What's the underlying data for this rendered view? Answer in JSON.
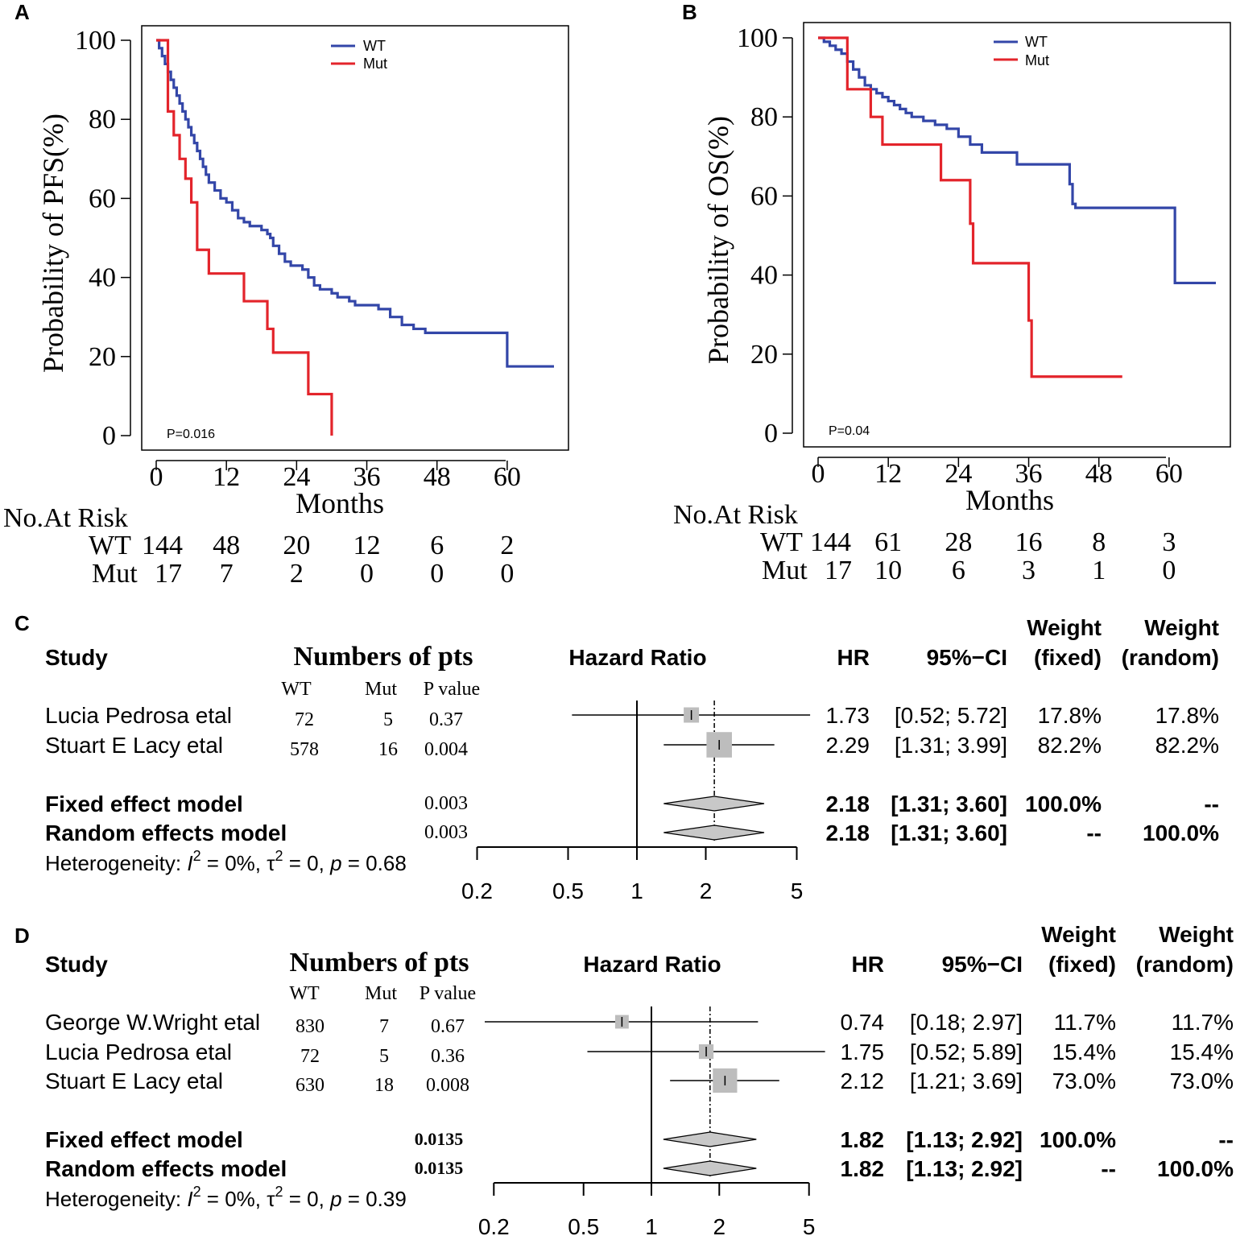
{
  "chart_data": [
    {
      "panel": "A",
      "type": "line",
      "subtype": "kaplan-meier",
      "title": "",
      "xlabel": "Months",
      "ylabel": "Probability of PFS(%)",
      "xlim": [
        0,
        68
      ],
      "ylim": [
        0,
        100
      ],
      "xticks": [
        0,
        12,
        24,
        36,
        48,
        60
      ],
      "yticks": [
        0,
        20,
        40,
        60,
        80,
        100
      ],
      "pvalue": "P=0.016",
      "legend": [
        "WT",
        "Mut"
      ],
      "colors": {
        "WT": "#3346a8",
        "Mut": "#e3242b"
      },
      "series": [
        {
          "name": "WT",
          "x": [
            0,
            0.5,
            1,
            1.5,
            2,
            2.5,
            3,
            3.5,
            4,
            4.5,
            5,
            5.5,
            6,
            6.5,
            7,
            7.5,
            8,
            8.5,
            9,
            10,
            11,
            12,
            13,
            14,
            15,
            16,
            17,
            18,
            19,
            19.5,
            20,
            21,
            22,
            23,
            24,
            25,
            26,
            27,
            28,
            30,
            31,
            32,
            33,
            34,
            35,
            36,
            38,
            40,
            42,
            44,
            46,
            48,
            50,
            52,
            54,
            56,
            58,
            60,
            60,
            61,
            62,
            63,
            64,
            65,
            66,
            67,
            68
          ],
          "y": [
            100,
            98,
            96,
            94,
            92,
            90,
            88,
            86,
            84,
            82,
            80,
            78,
            76,
            74,
            72,
            70,
            68,
            66,
            64,
            62,
            60,
            59,
            57,
            55,
            54,
            53,
            53,
            52,
            51,
            50,
            48,
            46,
            44,
            43,
            43,
            42,
            40,
            38,
            37,
            36,
            35,
            35,
            34,
            33,
            33,
            33,
            32,
            30,
            28,
            27,
            26,
            26,
            26,
            26,
            26,
            26,
            26,
            26,
            17.5,
            17.5,
            17.5,
            17.5,
            17.5,
            17.5,
            17.5,
            17.5,
            17.5
          ]
        },
        {
          "name": "Mut",
          "x": [
            0,
            2,
            2,
            3,
            3,
            4,
            4,
            5,
            5,
            6,
            6,
            7,
            7,
            9,
            9,
            15,
            15,
            19,
            19,
            20,
            20,
            26,
            26,
            30,
            30
          ],
          "y": [
            100,
            100,
            82,
            82,
            76,
            76,
            70,
            70,
            65,
            65,
            59,
            59,
            47,
            47,
            41,
            41,
            34,
            34,
            27,
            27,
            21,
            21,
            10.5,
            10.5,
            0
          ]
        }
      ]
    },
    {
      "panel": "B",
      "type": "line",
      "subtype": "kaplan-meier",
      "title": "",
      "xlabel": "Months",
      "ylabel": "Probability of OS(%)",
      "xlim": [
        0,
        68
      ],
      "ylim": [
        0,
        100
      ],
      "xticks": [
        0,
        12,
        24,
        36,
        48,
        60
      ],
      "yticks": [
        0,
        20,
        40,
        60,
        80,
        100
      ],
      "pvalue": "P=0.04",
      "legend": [
        "WT",
        "Mut"
      ],
      "colors": {
        "WT": "#3346a8",
        "Mut": "#e3242b"
      },
      "series": [
        {
          "name": "WT",
          "x": [
            0,
            1,
            2,
            3,
            4,
            5,
            6,
            7,
            8,
            9,
            10,
            11,
            12,
            13,
            14,
            15,
            16,
            18,
            20,
            22,
            24,
            26,
            28,
            30,
            34,
            36,
            40,
            42,
            43,
            43.5,
            44,
            50,
            55,
            60,
            61,
            61,
            64,
            68
          ],
          "y": [
            100,
            99,
            98,
            97,
            96,
            94,
            92,
            90,
            88,
            87,
            86,
            85,
            84,
            83,
            82,
            81,
            80,
            79,
            78,
            77,
            75,
            73,
            71,
            71,
            68,
            68,
            68,
            68,
            63,
            58,
            57,
            57,
            57,
            57,
            57,
            38,
            38,
            38
          ]
        },
        {
          "name": "Mut",
          "x": [
            0,
            5,
            5,
            9,
            9,
            11,
            11,
            21,
            21,
            26,
            26,
            26.5,
            26.5,
            36,
            36,
            36.5,
            36.5,
            52
          ],
          "y": [
            100,
            100,
            87,
            87,
            80,
            80,
            73,
            73,
            64,
            64,
            53,
            53,
            43,
            43,
            28.5,
            28.5,
            14.3,
            14.3
          ]
        }
      ]
    },
    {
      "panel": "C",
      "type": "table",
      "subtype": "forest-plot",
      "xlabel": "Hazard Ratio",
      "xscale": "log",
      "xticks": [
        0.2,
        0.5,
        1,
        2,
        5
      ],
      "pooled_hr": 2.18,
      "studies": [
        {
          "study": "Lucia Pedrosa etal",
          "wt": "72",
          "mut": "5",
          "p": "0.37",
          "hr": 1.73,
          "lo": 0.52,
          "hi": 5.72,
          "w_fixed": 17.8
        },
        {
          "study": "Stuart E Lacy etal",
          "wt": "578",
          "mut": "16",
          "p": "0.004",
          "hr": 2.29,
          "lo": 1.31,
          "hi": 3.99,
          "w_fixed": 82.2
        }
      ],
      "models": [
        {
          "name": "Fixed effect model",
          "p": "0.003",
          "hr": 2.18,
          "lo": 1.31,
          "hi": 3.6
        },
        {
          "name": "Random effects model",
          "p": "0.003",
          "hr": 2.18,
          "lo": 1.31,
          "hi": 3.6
        }
      ]
    },
    {
      "panel": "D",
      "type": "table",
      "subtype": "forest-plot",
      "xlabel": "Hazard Ratio",
      "xscale": "log",
      "xticks": [
        0.2,
        0.5,
        1,
        2,
        5
      ],
      "pooled_hr": 1.82,
      "studies": [
        {
          "study": "George W.Wright etal",
          "wt": "830",
          "mut": "7",
          "p": "0.67",
          "hr": 0.74,
          "lo": 0.18,
          "hi": 2.97,
          "w_fixed": 11.7
        },
        {
          "study": "Lucia Pedrosa etal",
          "wt": "72",
          "mut": "5",
          "p": "0.36",
          "hr": 1.75,
          "lo": 0.52,
          "hi": 5.89,
          "w_fixed": 15.4
        },
        {
          "study": "Stuart E Lacy etal",
          "wt": "630",
          "mut": "18",
          "p": "0.008",
          "hr": 2.12,
          "lo": 1.21,
          "hi": 3.69,
          "w_fixed": 73.0
        }
      ],
      "models": [
        {
          "name": "Fixed effect model",
          "p": "0.0135",
          "hr": 1.82,
          "lo": 1.13,
          "hi": 2.92
        },
        {
          "name": "Random effects model",
          "p": "0.0135",
          "hr": 1.82,
          "lo": 1.13,
          "hi": 2.92
        }
      ]
    }
  ],
  "panelA": {
    "label": "A",
    "yticks": [
      "0",
      "20",
      "40",
      "60",
      "80",
      "100"
    ],
    "xticks": [
      "0",
      "12",
      "24",
      "36",
      "48",
      "60"
    ],
    "ylabel": "Probability of PFS(%)",
    "xlabel": "Months",
    "legend_wt": "WT",
    "legend_mut": "Mut",
    "pvalue": "P=0.016",
    "risk_title": "No.At Risk",
    "risk_wt_label": "WT",
    "risk_mut_label": "Mut",
    "risk_wt": [
      "144",
      "48",
      "20",
      "12",
      "6",
      "2"
    ],
    "risk_mut": [
      "17",
      "7",
      "2",
      "0",
      "0",
      "0"
    ]
  },
  "panelB": {
    "label": "B",
    "yticks": [
      "0",
      "20",
      "40",
      "60",
      "80",
      "100"
    ],
    "xticks": [
      "0",
      "12",
      "24",
      "36",
      "48",
      "60"
    ],
    "ylabel": "Probability of OS(%)",
    "xlabel": "Months",
    "legend_wt": "WT",
    "legend_mut": "Mut",
    "pvalue": "P=0.04",
    "risk_title": "No.At Risk",
    "risk_wt_label": "WT",
    "risk_mut_label": "Mut",
    "risk_wt": [
      "144",
      "61",
      "28",
      "16",
      "8",
      "3"
    ],
    "risk_mut": [
      "17",
      "10",
      "6",
      "3",
      "1",
      "0"
    ]
  },
  "panelC": {
    "label": "C",
    "h_study": "Study",
    "h_pts": "Numbers of pts",
    "h_hr_axis": "Hazard Ratio",
    "h_hr": "HR",
    "h_ci": "95%−CI",
    "h_weight1": "Weight",
    "h_fixed": "(fixed)",
    "h_weight2": "Weight",
    "h_random": "(random)",
    "sub_wt": "WT",
    "sub_mut": "Mut",
    "sub_p": "P value",
    "rows": [
      {
        "study": "Lucia Pedrosa etal",
        "wt": "72",
        "mut": "5",
        "p": "0.37",
        "hr": "1.73",
        "ci": "[0.52; 5.72]",
        "wf": "17.8%",
        "wr": "17.8%"
      },
      {
        "study": "Stuart E Lacy etal",
        "wt": "578",
        "mut": "16",
        "p": "0.004",
        "hr": "2.29",
        "ci": "[1.31; 3.99]",
        "wf": "82.2%",
        "wr": "82.2%"
      }
    ],
    "models": [
      {
        "name": "Fixed effect model",
        "p": "0.003",
        "hr": "2.18",
        "ci": "[1.31; 3.60]",
        "wf": "100.0%",
        "wr": "--"
      },
      {
        "name": "Random effects model",
        "p": "0.003",
        "hr": "2.18",
        "ci": "[1.31; 3.60]",
        "wf": "--",
        "wr": "100.0%"
      }
    ],
    "het_prefix": "Heterogeneity: ",
    "het_i": "I",
    "het_sup": "2",
    "het_mid": " = 0%, ",
    "het_tau": "τ",
    "het_mid2": " = 0, ",
    "het_p": "p",
    "het_end": " = 0.68",
    "axis_ticks": [
      "0.2",
      "0.5",
      "1",
      "2",
      "5"
    ]
  },
  "panelD": {
    "label": "D",
    "h_study": "Study",
    "h_pts": "Numbers of pts",
    "h_hr_axis": "Hazard Ratio",
    "h_hr": "HR",
    "h_ci": "95%−CI",
    "h_weight1": "Weight",
    "h_fixed": "(fixed)",
    "h_weight2": "Weight",
    "h_random": "(random)",
    "sub_wt": "WT",
    "sub_mut": "Mut",
    "sub_p": "P value",
    "rows": [
      {
        "study": "George W.Wright etal",
        "wt": "830",
        "mut": "7",
        "p": "0.67",
        "hr": "0.74",
        "ci": "[0.18; 2.97]",
        "wf": "11.7%",
        "wr": "11.7%"
      },
      {
        "study": "Lucia Pedrosa etal",
        "wt": "72",
        "mut": "5",
        "p": "0.36",
        "hr": "1.75",
        "ci": "[0.52; 5.89]",
        "wf": "15.4%",
        "wr": "15.4%"
      },
      {
        "study": "Stuart E Lacy etal",
        "wt": "630",
        "mut": "18",
        "p": "0.008",
        "hr": "2.12",
        "ci": "[1.21; 3.69]",
        "wf": "73.0%",
        "wr": "73.0%"
      }
    ],
    "models": [
      {
        "name": "Fixed effect model",
        "p": "0.0135",
        "hr": "1.82",
        "ci": "[1.13; 2.92]",
        "wf": "100.0%",
        "wr": "--"
      },
      {
        "name": "Random effects model",
        "p": "0.0135",
        "hr": "1.82",
        "ci": "[1.13; 2.92]",
        "wf": "--",
        "wr": "100.0%"
      }
    ],
    "het_prefix": "Heterogeneity: ",
    "het_i": "I",
    "het_sup": "2",
    "het_mid": " = 0%, ",
    "het_tau": "τ",
    "het_mid2": " = 0, ",
    "het_p": "p",
    "het_end": " = 0.39",
    "axis_ticks": [
      "0.2",
      "0.5",
      "1",
      "2",
      "5"
    ]
  }
}
